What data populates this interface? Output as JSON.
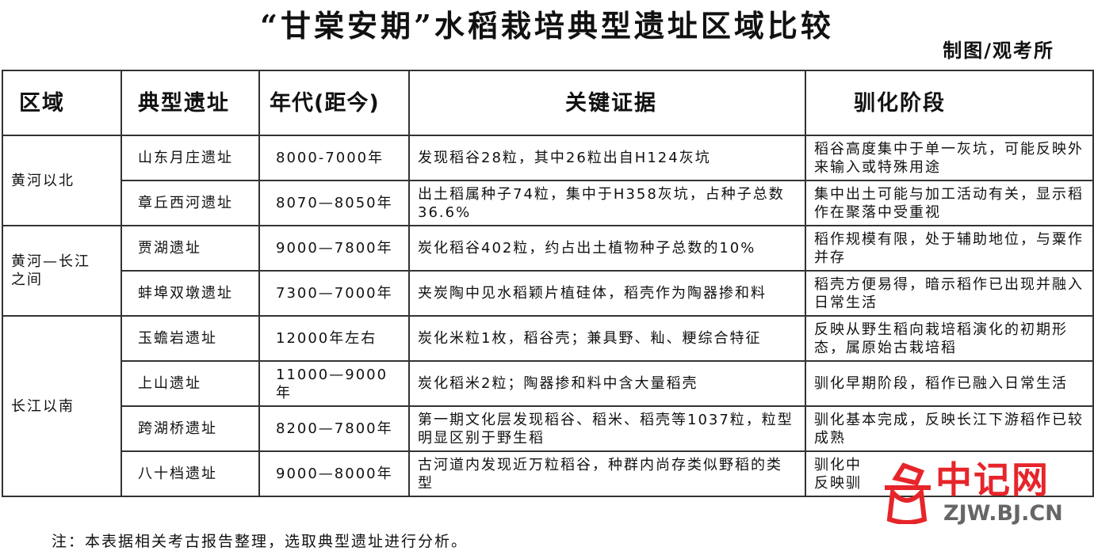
{
  "title": "“甘棠安期”水稻栽培典型遗址区域比较",
  "credit": "制图/观考所",
  "headers": [
    "区域",
    "典型遗址",
    "年代(距今)",
    "关键证据",
    "驯化阶段"
  ],
  "regions": [
    "黄河以北",
    "黄河—长江之间",
    "长江以南"
  ],
  "rows": [
    {
      "site": "山东月庄遗址",
      "age": "8000-7000年",
      "evidence": "发现稻谷28粒，其中26粒出自H124灰坑",
      "stage": "稻谷高度集中于单一灰坑，可能反映外来输入或特殊用途"
    },
    {
      "site": "章丘西河遗址",
      "age": "8070—8050年",
      "evidence": "出土稻属种子74粒，集中于H358灰坑，占种子总数36.6%",
      "stage": "集中出土可能与加工活动有关，显示稻作在聚落中受重视"
    },
    {
      "site": "贾湖遗址",
      "age": "9000—7800年",
      "evidence": "炭化稻谷402粒，约占出土植物种子总数的10%",
      "stage": "稻作规模有限，处于辅助地位，与粟作并存"
    },
    {
      "site": "蚌埠双墩遗址",
      "age": "7300—7000年",
      "evidence": "夹炭陶中见水稻颖片植硅体，稻壳作为陶器掺和料",
      "stage": "稻壳方便易得，暗示稻作已出现并融入日常生活"
    },
    {
      "site": "玉蟾岩遗址",
      "age": "12000年左右",
      "evidence": "炭化米粒1枚，稻谷壳；兼具野、籼、粳综合特征",
      "stage": "反映从野生稻向栽培稻演化的初期形态，属原始古栽培稻"
    },
    {
      "site": "上山遗址",
      "age": "11000—9000年",
      "evidence": "炭化稻米2粒；陶器掺和料中含大量稻壳",
      "stage": "驯化早期阶段，稻作已融入日常生活"
    },
    {
      "site": "跨湖桥遗址",
      "age": "8200—7800年",
      "evidence": "第一期文化层发现稻谷、稻米、稻壳等1037粒，粒型明显区别于野生稻",
      "stage": "驯化基本完成，反映长江下游稻作已较成熟"
    },
    {
      "site": "八十档遗址",
      "age": "9000—8000年",
      "evidence": "古河道内发现近万粒稻谷，种群内尚存类似野稻的类型",
      "stage": "驯化中 反映驯"
    }
  ],
  "note": "注：本表据相关考古报告整理，选取典型遗址进行分析。",
  "watermark": {
    "name": "中记网",
    "url": "ZJW.BJ.CN",
    "color": "#e6252a"
  }
}
